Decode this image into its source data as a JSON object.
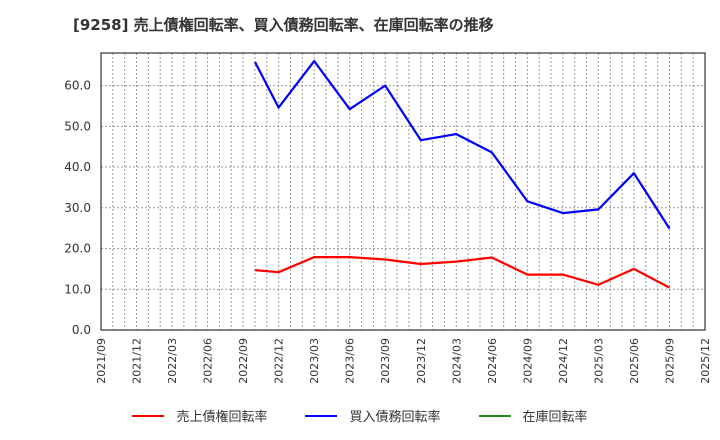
{
  "title": "[9258]  売上債権回転率、買入債務回転率、在庫回転率の推移",
  "colors": {
    "receivables": "#ff0000",
    "payables": "#0000ff",
    "inventory": "#228b22",
    "grid": "#999999",
    "axis": "#333333"
  },
  "legend": [
    {
      "label": "売上債権回転率",
      "color": "#ff0000"
    },
    {
      "label": "買入債務回転率",
      "color": "#0000ff"
    },
    {
      "label": "在庫回転率",
      "color": "#228b22"
    }
  ],
  "chart_data": {
    "type": "line",
    "title": "[9258]  売上債権回転率、買入債務回転率、在庫回転率の推移",
    "xlabel": "",
    "ylabel": "",
    "ylim": [
      0,
      68
    ],
    "yticks": [
      "0.0",
      "10.0",
      "20.0",
      "30.0",
      "40.0",
      "50.0",
      "60.0"
    ],
    "xticks": [
      "2021/09",
      "2021/12",
      "2022/03",
      "2022/06",
      "2022/09",
      "2022/12",
      "2023/03",
      "2023/06",
      "2023/09",
      "2023/12",
      "2024/03",
      "2024/06",
      "2024/09",
      "2024/12",
      "2025/03",
      "2025/06",
      "2025/09",
      "2025/12"
    ],
    "grid": true,
    "legend_position": "bottom",
    "x": [
      "2022/10",
      "2022/12",
      "2023/03",
      "2023/06",
      "2023/09",
      "2023/12",
      "2024/03",
      "2024/06",
      "2024/09",
      "2024/12",
      "2025/03",
      "2025/06",
      "2025/09"
    ],
    "series": [
      {
        "name": "売上債権回転率",
        "color": "#ff0000",
        "values": [
          14.7,
          14.2,
          17.9,
          17.9,
          17.3,
          16.2,
          16.8,
          17.8,
          13.6,
          13.6,
          11.1,
          15.0,
          10.4
        ]
      },
      {
        "name": "買入債務回転率",
        "color": "#0000ff",
        "values": [
          65.8,
          54.6,
          66.0,
          54.2,
          60.0,
          46.6,
          48.1,
          43.6,
          31.6,
          28.7,
          29.6,
          38.5,
          24.9
        ]
      },
      {
        "name": "在庫回転率",
        "color": "#228b22",
        "values": []
      }
    ]
  }
}
